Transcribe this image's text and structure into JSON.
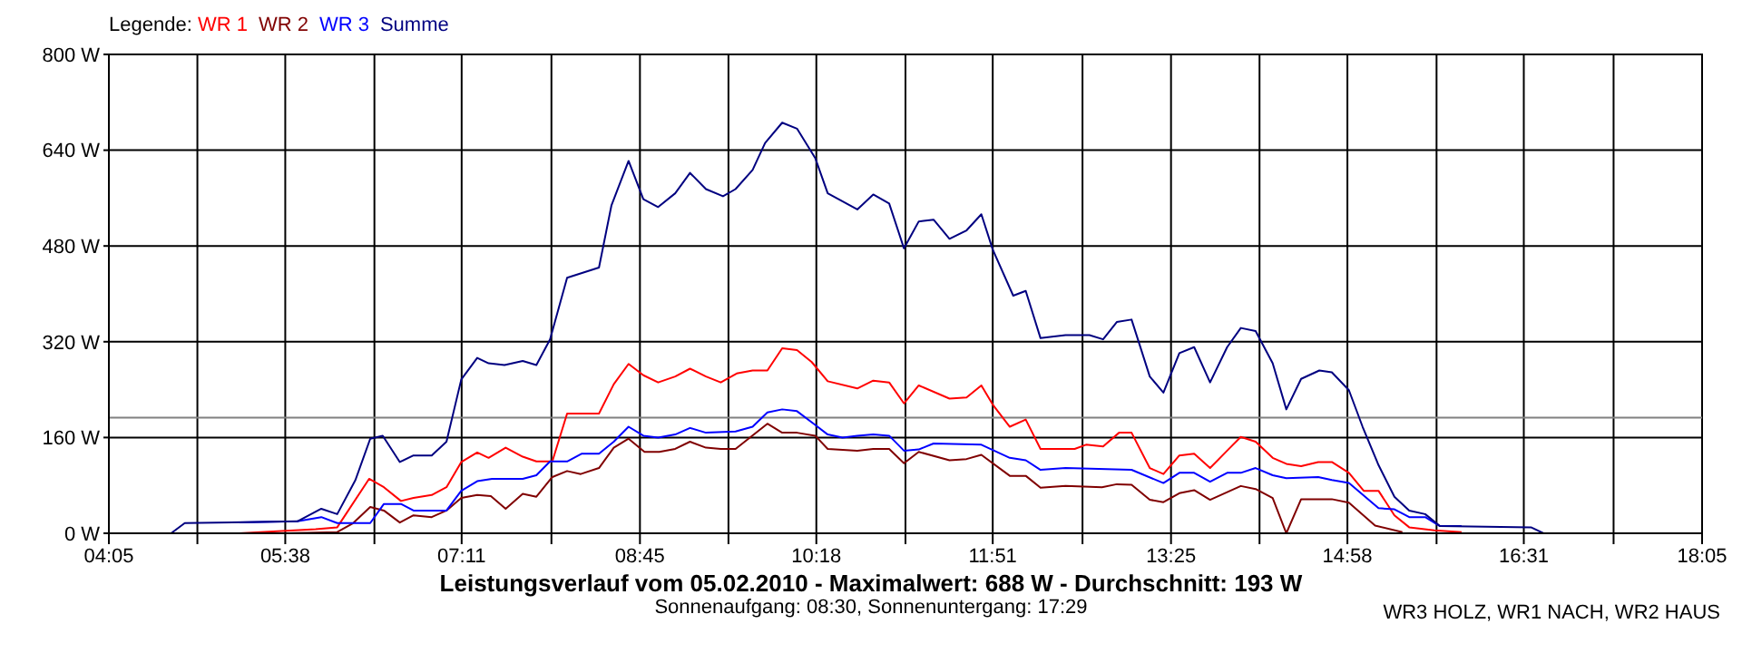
{
  "chart_data": {
    "type": "line",
    "title": "Leistungsverlauf vom 05.02.2010 - Maximalwert: 688 W - Durchschnitt: 193 W",
    "subtitle": "Sonnenaufgang: 08:30, Sonnenuntergang: 17:29",
    "annotations": [
      "WR3 HOLZ, WR1 NACH, WR2 HAUS"
    ],
    "legend_title": "Legende:",
    "legend": "top left",
    "grid": true,
    "marker": "none",
    "line_style": "solid",
    "xlim": [
      4.0833,
      18.0833
    ],
    "xticks": [
      {
        "value": 4.0833,
        "label": "04:05"
      },
      {
        "value": 4.8611,
        "label": null
      },
      {
        "value": 5.6333,
        "label": "05:38"
      },
      {
        "value": 6.4167,
        "label": null
      },
      {
        "value": 7.1833,
        "label": "07:11"
      },
      {
        "value": 7.9722,
        "label": null
      },
      {
        "value": 8.75,
        "label": "08:45"
      },
      {
        "value": 9.5278,
        "label": null
      },
      {
        "value": 10.3,
        "label": "10:18"
      },
      {
        "value": 11.0833,
        "label": null
      },
      {
        "value": 11.85,
        "label": "11:51"
      },
      {
        "value": 12.6389,
        "label": null
      },
      {
        "value": 13.4167,
        "label": "13:25"
      },
      {
        "value": 14.1944,
        "label": null
      },
      {
        "value": 14.9667,
        "label": "14:58"
      },
      {
        "value": 15.75,
        "label": null
      },
      {
        "value": 16.5167,
        "label": "16:31"
      },
      {
        "value": 17.3056,
        "label": null
      },
      {
        "value": 18.0833,
        "label": "18:05"
      }
    ],
    "ylim": [
      0,
      800
    ],
    "yticks": [
      {
        "value": 0,
        "label": "0 W"
      },
      {
        "value": 160,
        "label": "160 W"
      },
      {
        "value": 320,
        "label": "320 W"
      },
      {
        "value": 480,
        "label": "480 W"
      },
      {
        "value": 640,
        "label": "640 W"
      },
      {
        "value": 800,
        "label": "800 W"
      }
    ],
    "ref_lines": [
      {
        "axis": "y",
        "value": 193,
        "color": "#808080"
      }
    ],
    "series": [
      {
        "name": "WR 1",
        "color": "#ff0000",
        "x": [
          5.23,
          5.9,
          6.09,
          6.37,
          6.5,
          6.65,
          6.76,
          6.92,
          7.05,
          7.18,
          7.32,
          7.42,
          7.57,
          7.72,
          7.84,
          7.98,
          8.11,
          8.39,
          8.52,
          8.65,
          8.78,
          8.91,
          9.06,
          9.19,
          9.33,
          9.46,
          9.6,
          9.74,
          9.87,
          10.0,
          10.13,
          10.26,
          10.4,
          10.66,
          10.8,
          10.94,
          11.07,
          11.2,
          11.47,
          11.62,
          11.75,
          11.85,
          12.0,
          12.14,
          12.27,
          12.57,
          12.67,
          12.82,
          12.96,
          13.07,
          13.23,
          13.35,
          13.49,
          13.62,
          13.76,
          13.91,
          14.03,
          14.16,
          14.31,
          14.43,
          14.56,
          14.71,
          14.83,
          14.98,
          15.11,
          15.24,
          15.38,
          15.51,
          15.73,
          15.97
        ],
        "values": [
          0,
          7,
          10,
          91,
          77,
          54,
          59,
          64,
          77,
          119,
          135,
          126,
          143,
          128,
          120,
          120,
          200,
          200,
          249,
          283,
          264,
          252,
          262,
          275,
          262,
          252,
          267,
          272,
          272,
          309,
          306,
          286,
          254,
          242,
          255,
          252,
          217,
          247,
          225,
          227,
          247,
          215,
          178,
          190,
          141,
          141,
          148,
          145,
          168,
          168,
          109,
          99,
          130,
          133,
          109,
          138,
          161,
          153,
          126,
          116,
          112,
          119,
          119,
          101,
          71,
          71,
          30,
          10,
          5,
          2
        ]
      },
      {
        "name": "WR 2",
        "color": "#800000",
        "x": [
          5.63,
          6.09,
          6.23,
          6.38,
          6.5,
          6.64,
          6.76,
          6.92,
          7.05,
          7.18,
          7.32,
          7.44,
          7.57,
          7.72,
          7.84,
          7.98,
          8.11,
          8.23,
          8.39,
          8.52,
          8.65,
          8.79,
          8.92,
          9.06,
          9.19,
          9.33,
          9.46,
          9.59,
          9.87,
          10.0,
          10.13,
          10.29,
          10.4,
          10.66,
          10.8,
          10.94,
          11.07,
          11.2,
          11.47,
          11.62,
          11.75,
          12.0,
          12.14,
          12.27,
          12.49,
          12.81,
          12.94,
          13.07,
          13.23,
          13.35,
          13.49,
          13.62,
          13.76,
          14.03,
          14.16,
          14.31,
          14.43,
          14.56,
          14.83,
          14.98,
          15.21,
          15.45
        ],
        "values": [
          0,
          2,
          17,
          44,
          38,
          18,
          30,
          27,
          38,
          59,
          64,
          62,
          41,
          66,
          61,
          94,
          104,
          99,
          109,
          143,
          158,
          136,
          136,
          141,
          153,
          143,
          141,
          141,
          183,
          168,
          168,
          163,
          141,
          138,
          141,
          141,
          117,
          136,
          122,
          124,
          131,
          96,
          96,
          76,
          79,
          77,
          82,
          81,
          56,
          52,
          67,
          72,
          56,
          79,
          74,
          59,
          0,
          57,
          57,
          51,
          13,
          2
        ]
      },
      {
        "name": "WR 3",
        "color": "#0000ff",
        "x": [
          5.23,
          5.74,
          5.95,
          6.09,
          6.38,
          6.5,
          6.65,
          6.76,
          7.05,
          7.18,
          7.32,
          7.45,
          7.72,
          7.84,
          7.96,
          8.11,
          8.24,
          8.39,
          8.52,
          8.65,
          8.78,
          8.91,
          9.06,
          9.19,
          9.33,
          9.59,
          9.74,
          9.87,
          10.0,
          10.13,
          10.29,
          10.4,
          10.53,
          10.66,
          10.8,
          10.94,
          11.07,
          11.2,
          11.33,
          11.75,
          12.0,
          12.14,
          12.27,
          12.49,
          13.07,
          13.35,
          13.49,
          13.62,
          13.76,
          13.91,
          14.03,
          14.16,
          14.31,
          14.43,
          14.71,
          14.83,
          14.98,
          15.24,
          15.38,
          15.51,
          15.65,
          15.78,
          15.97
        ],
        "values": [
          18,
          20,
          27,
          17,
          17,
          49,
          49,
          38,
          38,
          71,
          87,
          91,
          91,
          97,
          120,
          120,
          133,
          133,
          153,
          178,
          163,
          160,
          165,
          176,
          168,
          170,
          178,
          202,
          207,
          204,
          181,
          165,
          160,
          163,
          165,
          163,
          138,
          140,
          150,
          148,
          126,
          122,
          106,
          109,
          106,
          84,
          101,
          101,
          86,
          101,
          101,
          109,
          97,
          92,
          94,
          89,
          84,
          42,
          40,
          27,
          27,
          12,
          12
        ]
      },
      {
        "name": "Summe",
        "color": "#000080",
        "x": [
          4.63,
          4.75,
          5.74,
          5.95,
          6.09,
          6.25,
          6.38,
          6.49,
          6.64,
          6.76,
          6.92,
          7.05,
          7.18,
          7.32,
          7.42,
          7.56,
          7.72,
          7.84,
          7.96,
          8.11,
          8.39,
          8.5,
          8.65,
          8.78,
          8.91,
          9.06,
          9.19,
          9.33,
          9.48,
          9.59,
          9.74,
          9.85,
          10.0,
          10.13,
          10.29,
          10.4,
          10.66,
          10.8,
          10.94,
          11.07,
          11.2,
          11.33,
          11.47,
          11.62,
          11.75,
          11.85,
          12.03,
          12.14,
          12.27,
          12.49,
          12.7,
          12.82,
          12.94,
          13.07,
          13.23,
          13.35,
          13.49,
          13.62,
          13.76,
          13.91,
          14.03,
          14.16,
          14.31,
          14.43,
          14.56,
          14.72,
          14.83,
          14.98,
          15.1,
          15.24,
          15.38,
          15.51,
          15.65,
          15.78,
          16.58,
          16.69
        ],
        "values": [
          0,
          17,
          20,
          41,
          32,
          89,
          158,
          163,
          119,
          130,
          130,
          153,
          257,
          293,
          284,
          281,
          288,
          281,
          324,
          427,
          444,
          548,
          622,
          558,
          545,
          568,
          602,
          575,
          563,
          575,
          607,
          652,
          686,
          676,
          627,
          568,
          541,
          566,
          551,
          476,
          521,
          524,
          492,
          506,
          533,
          474,
          397,
          405,
          326,
          331,
          331,
          324,
          353,
          357,
          262,
          235,
          301,
          311,
          252,
          311,
          343,
          338,
          284,
          207,
          258,
          272,
          269,
          239,
          178,
          114,
          61,
          38,
          32,
          12,
          10,
          0
        ]
      }
    ]
  }
}
